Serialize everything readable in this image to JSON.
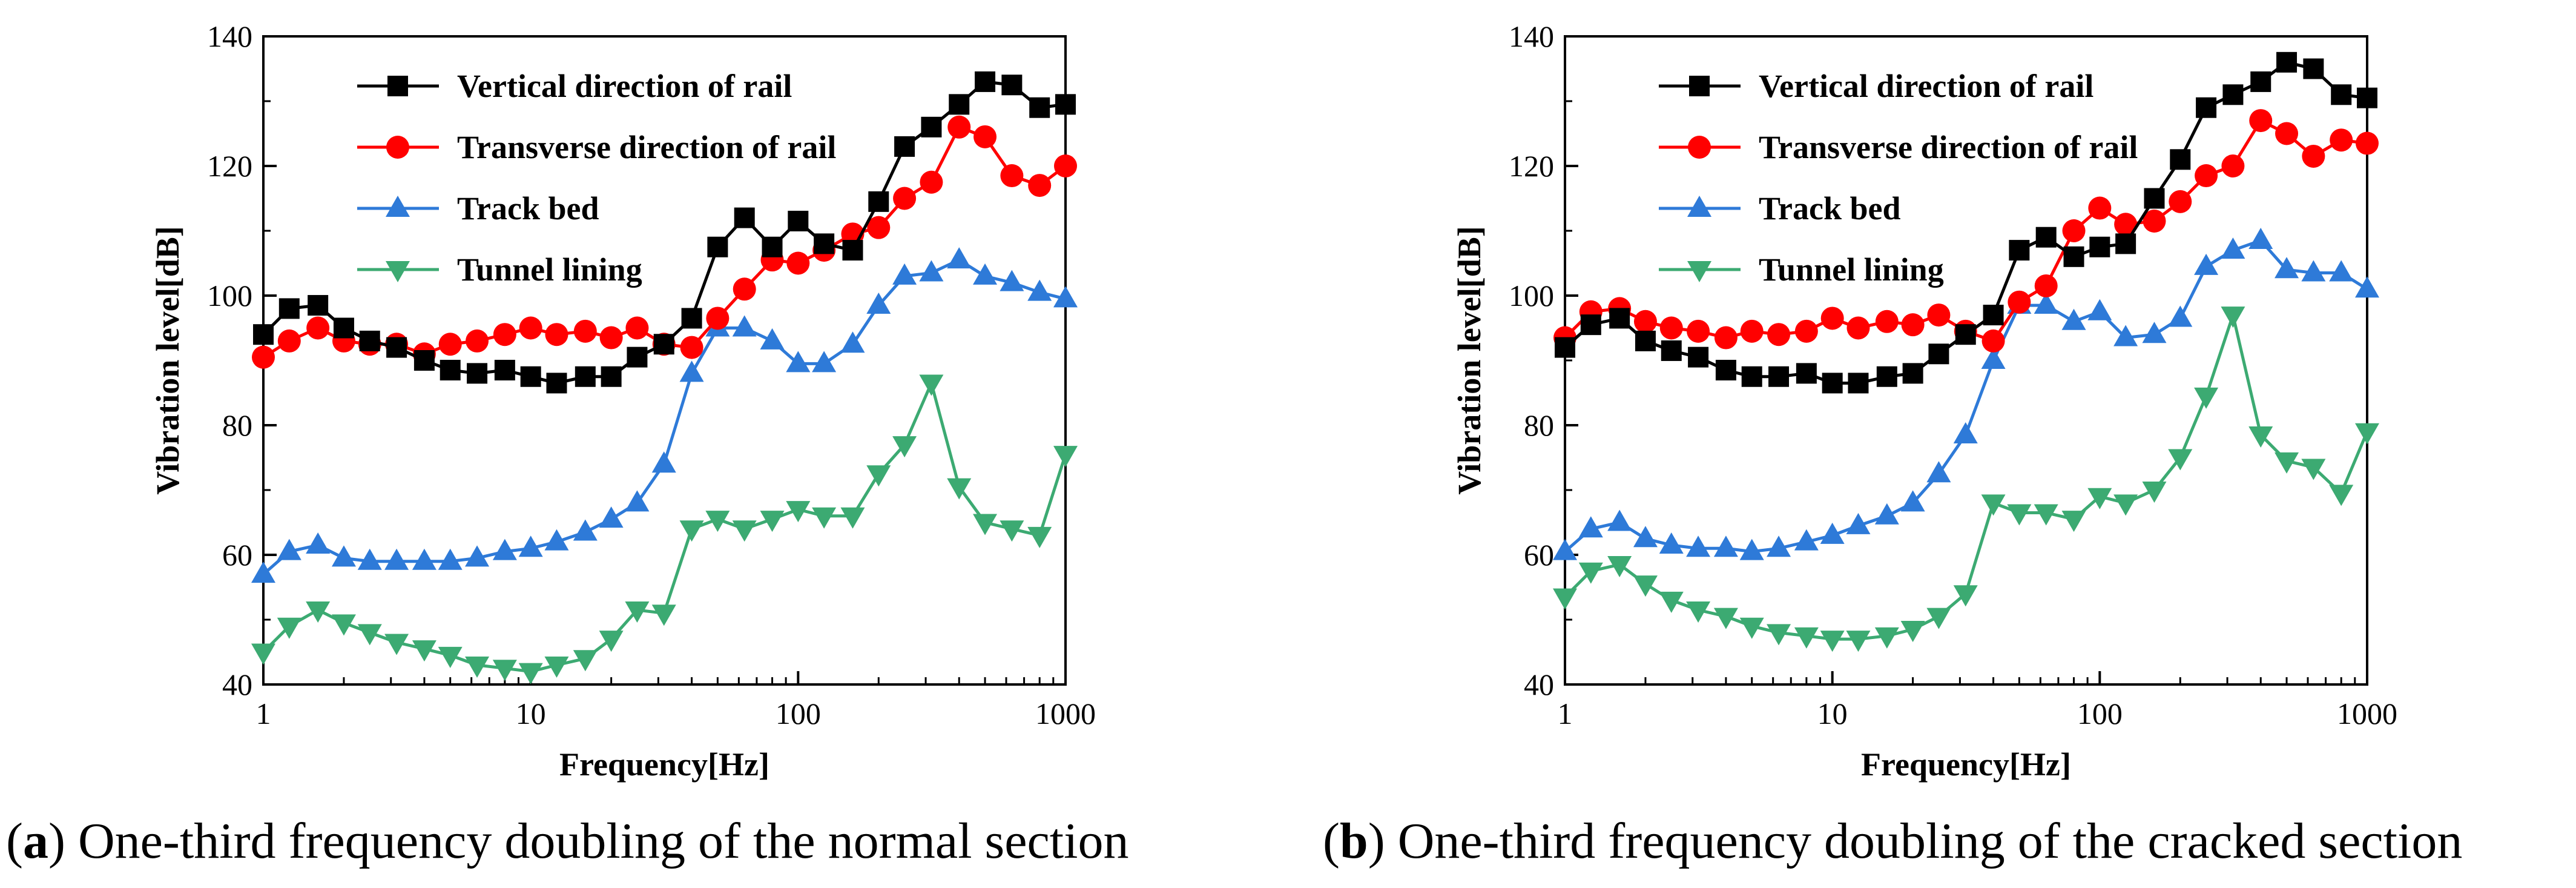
{
  "panels": [
    {
      "letter": "a",
      "caption": "One-third frequency doubling of the normal section"
    },
    {
      "letter": "b",
      "caption": "One-third frequency doubling of the cracked section"
    }
  ],
  "chart_data": [
    {
      "type": "line",
      "title": "",
      "xscale": "log",
      "xlabel": "Frequency[Hz]",
      "ylabel": "Vibration level[dB]",
      "xlim": [
        1,
        1000
      ],
      "ylim": [
        40,
        140
      ],
      "x_tick_labels": [
        "1",
        "10",
        "100",
        "1000"
      ],
      "y_tick_labels": [
        "40",
        "60",
        "80",
        "100",
        "120",
        "140"
      ],
      "legend_position": "top-left",
      "x": [
        1,
        1.25,
        1.6,
        2,
        2.5,
        3.15,
        4,
        5,
        6.3,
        8,
        10,
        12.5,
        16,
        20,
        25,
        31.5,
        40,
        50,
        63,
        80,
        100,
        125,
        160,
        200,
        250,
        315,
        400,
        500,
        630,
        800,
        1000
      ],
      "series": [
        {
          "name": "Vertical direction of rail",
          "color": "#000000",
          "marker": "square",
          "values": [
            94,
            98,
            98.5,
            95,
            93,
            92,
            90,
            88.5,
            88,
            88.5,
            87.5,
            86.5,
            87.5,
            87.5,
            90.5,
            92.5,
            96.5,
            107.5,
            112,
            107.5,
            111.5,
            108,
            107,
            114.5,
            123,
            126,
            129.5,
            133,
            132.5,
            129,
            129.5
          ]
        },
        {
          "name": "Transverse direction of rail",
          "color": "#ff0000",
          "marker": "circle",
          "values": [
            90.5,
            93,
            95,
            93,
            92.5,
            92.5,
            91,
            92.5,
            93,
            94,
            95,
            94,
            94.5,
            93.5,
            95,
            92.5,
            92,
            96.5,
            101,
            105.5,
            105,
            107,
            109.5,
            110.5,
            115,
            117.5,
            126,
            124.5,
            118.5,
            117,
            120
          ]
        },
        {
          "name": "Track bed",
          "color": "#2e7ad8",
          "marker": "triangle-up",
          "values": [
            57,
            60.5,
            61.5,
            59.5,
            59,
            59,
            59,
            59,
            59.5,
            60.5,
            61,
            62,
            63.5,
            65.5,
            68,
            74,
            88,
            95,
            95,
            93,
            89.5,
            89.5,
            92.5,
            98.5,
            103,
            103.5,
            105.5,
            103,
            102,
            100.5,
            99.5
          ]
        },
        {
          "name": "Tunnel lining",
          "color": "#3caa72",
          "marker": "triangle-down",
          "values": [
            45,
            49,
            51.5,
            49.5,
            48,
            46.5,
            45.5,
            44.5,
            43,
            42.5,
            42,
            43,
            44,
            47,
            51.5,
            51,
            64,
            65.5,
            64,
            65.5,
            67,
            66,
            66,
            72.5,
            77,
            86.5,
            70.5,
            65,
            64,
            63,
            75.5
          ]
        }
      ]
    },
    {
      "type": "line",
      "title": "",
      "xscale": "log",
      "xlabel": "Frequency[Hz]",
      "ylabel": "Vibration level[dB]",
      "xlim": [
        1,
        1000
      ],
      "ylim": [
        40,
        140
      ],
      "x_tick_labels": [
        "1",
        "10",
        "100",
        "1000"
      ],
      "y_tick_labels": [
        "40",
        "60",
        "80",
        "100",
        "120",
        "140"
      ],
      "legend_position": "top-left",
      "x": [
        1,
        1.25,
        1.6,
        2,
        2.5,
        3.15,
        4,
        5,
        6.3,
        8,
        10,
        12.5,
        16,
        20,
        25,
        31.5,
        40,
        50,
        63,
        80,
        100,
        125,
        160,
        200,
        250,
        315,
        400,
        500,
        630,
        800,
        1000
      ],
      "series": [
        {
          "name": "Vertical direction of rail",
          "color": "#000000",
          "marker": "square",
          "values": [
            92,
            95.5,
            96.5,
            93,
            91.5,
            90.5,
            88.5,
            87.5,
            87.5,
            88,
            86.5,
            86.5,
            87.5,
            88,
            91,
            94,
            97,
            107,
            109,
            106,
            107.5,
            108,
            115,
            121,
            129,
            131,
            133,
            136,
            135,
            131,
            130.5
          ]
        },
        {
          "name": "Transverse direction of rail",
          "color": "#ff0000",
          "marker": "circle",
          "values": [
            93.5,
            97.5,
            98,
            96,
            95,
            94.5,
            93.5,
            94.5,
            94,
            94.5,
            96.5,
            95,
            96,
            95.5,
            97,
            94.5,
            93,
            99,
            101.5,
            110,
            113.5,
            111,
            111.5,
            114.5,
            118.5,
            120,
            127,
            125,
            121.5,
            124,
            123.5
          ]
        },
        {
          "name": "Track bed",
          "color": "#2e7ad8",
          "marker": "triangle-up",
          "values": [
            60.5,
            64,
            65,
            62.5,
            61.5,
            61,
            61,
            60.5,
            61,
            62,
            63,
            64.5,
            66,
            68,
            72.5,
            78.5,
            90,
            98.5,
            98.5,
            96,
            97.5,
            93.5,
            94,
            96.5,
            104.5,
            107,
            108.5,
            104,
            103.5,
            103.5,
            101
          ]
        },
        {
          "name": "Tunnel lining",
          "color": "#3caa72",
          "marker": "triangle-down",
          "values": [
            53.5,
            57.5,
            58.5,
            55.5,
            53,
            51.5,
            50.5,
            49,
            48,
            47.5,
            47,
            47,
            47.5,
            48.5,
            50.5,
            54,
            68,
            66.5,
            66.5,
            65.5,
            69,
            68,
            70,
            75,
            84.5,
            97,
            78.5,
            74.5,
            73.5,
            69.5,
            79
          ]
        }
      ]
    }
  ]
}
